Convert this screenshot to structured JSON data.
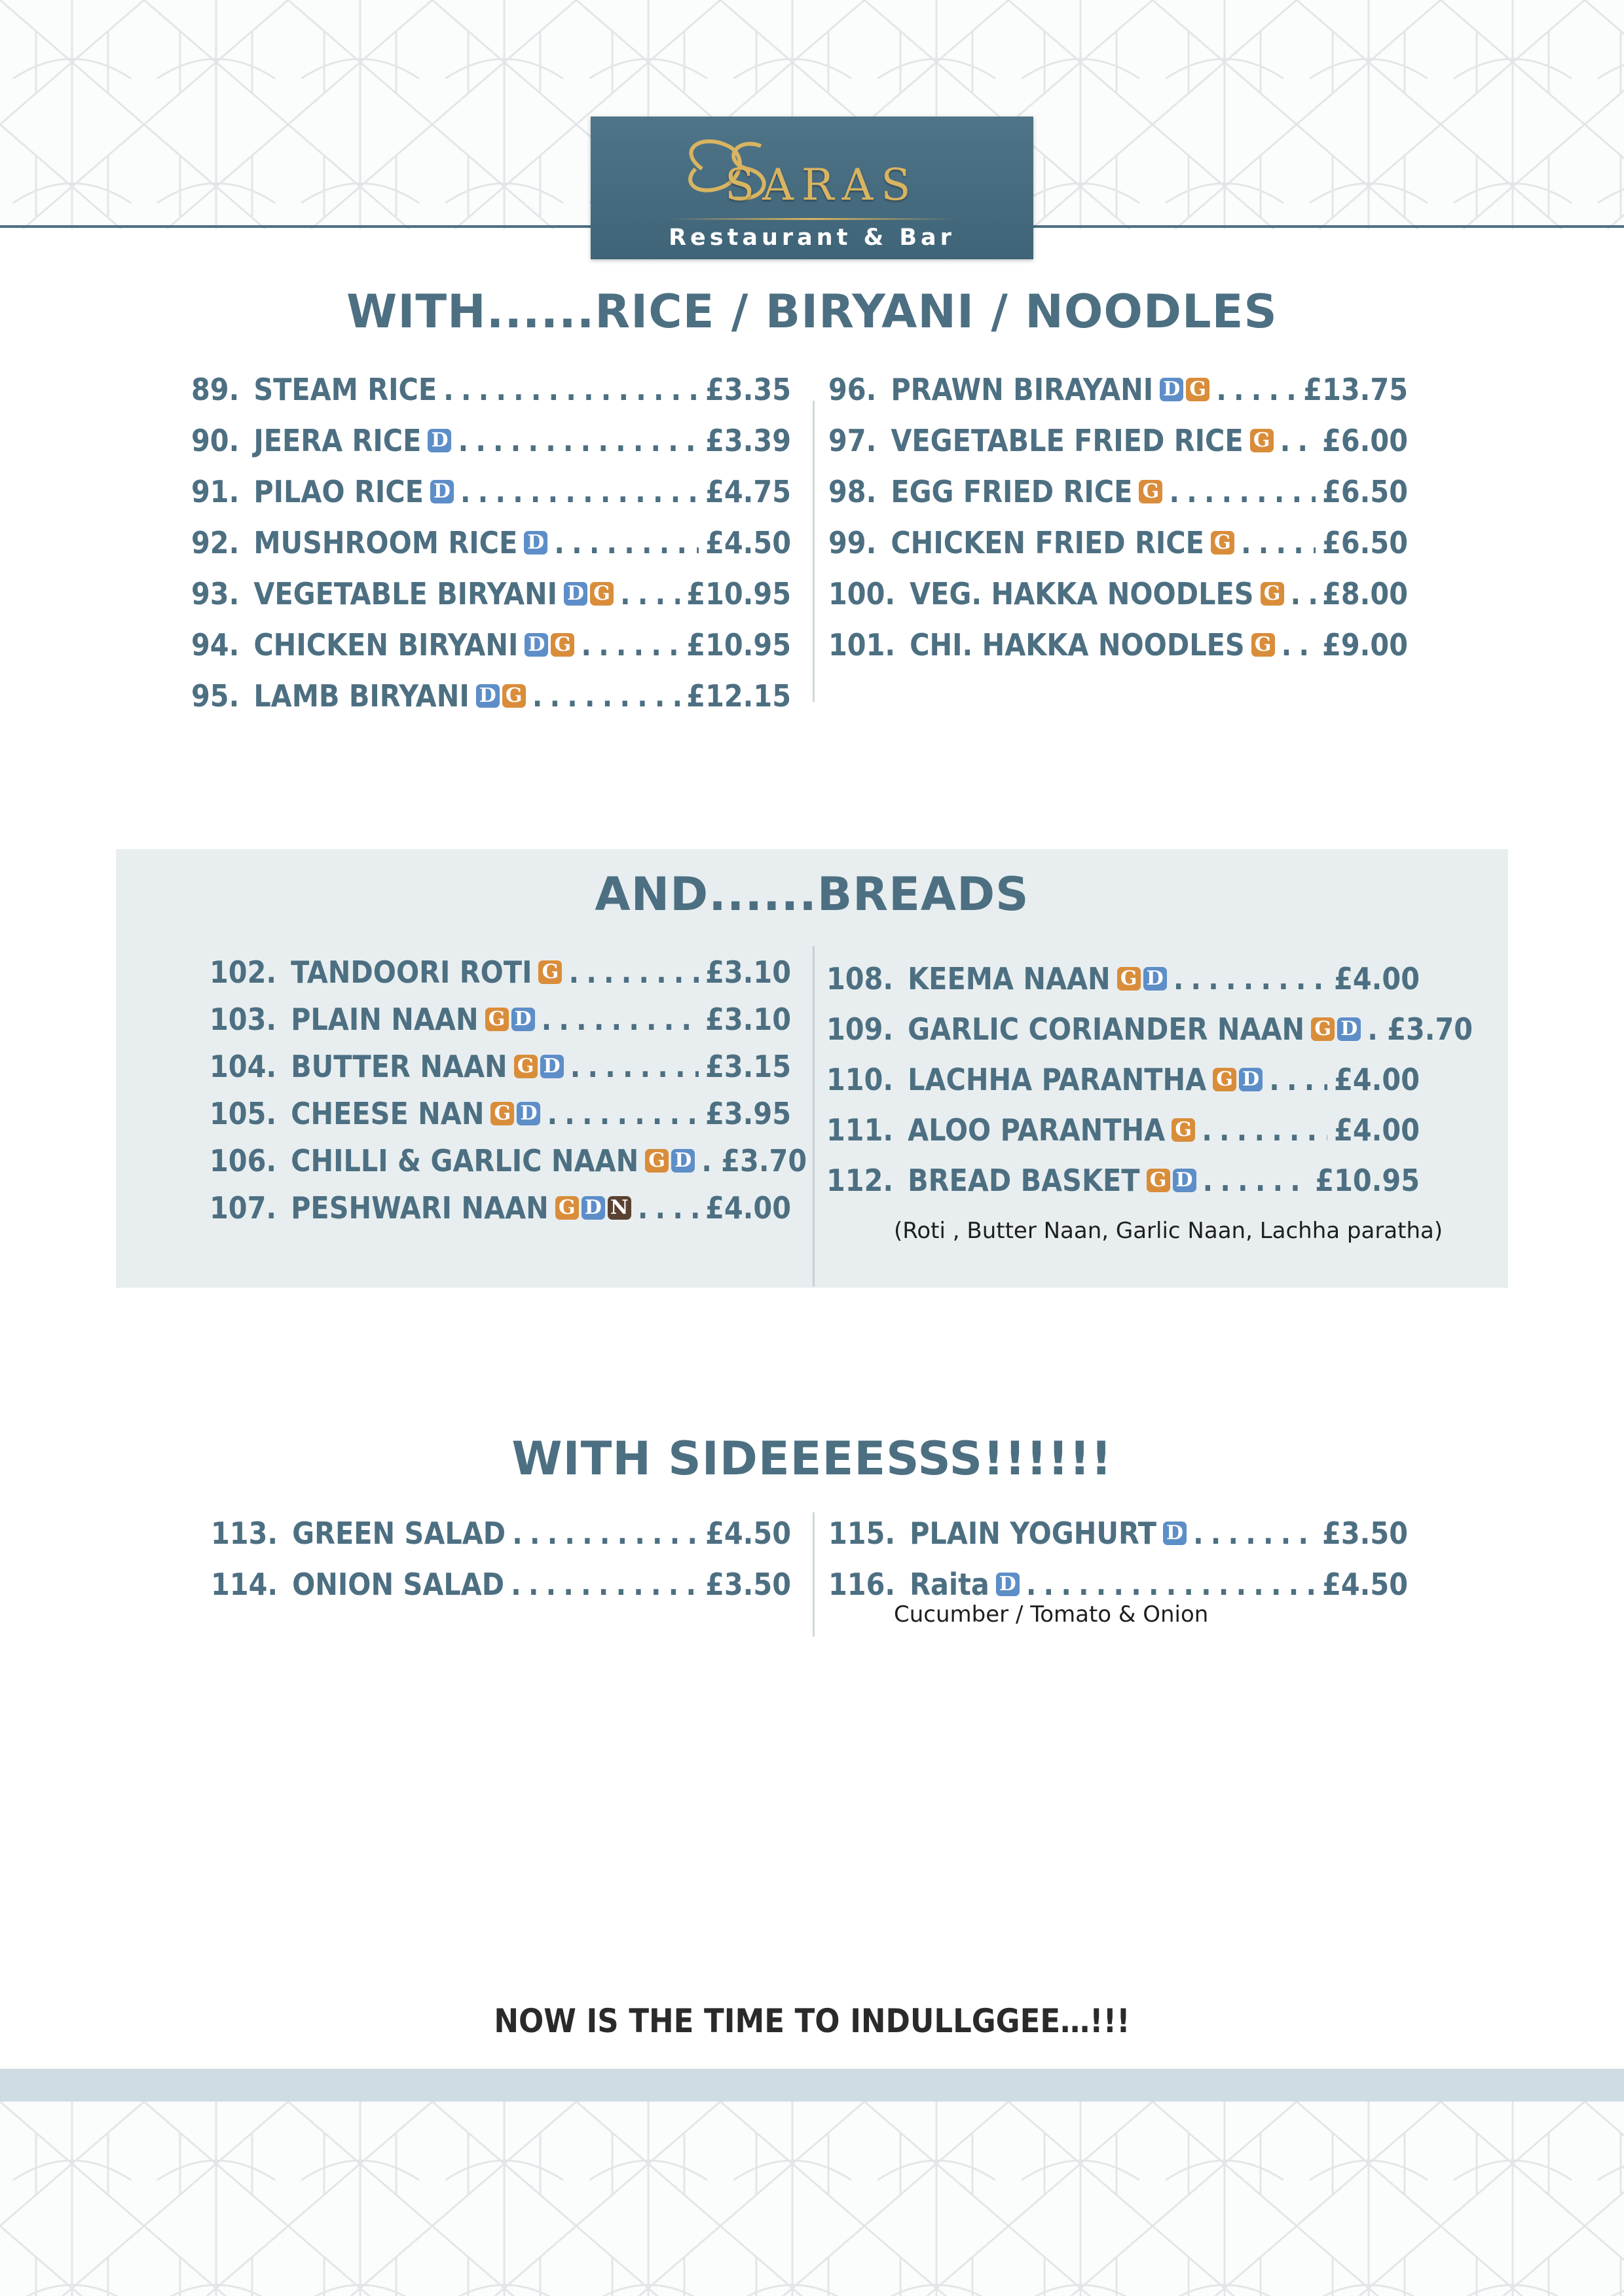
{
  "brand": {
    "name": "SARAS",
    "subtitle": "Restaurant & Bar",
    "gold": "#d9b461",
    "panel": "#4a6f82"
  },
  "colors": {
    "primary": "#4d6f82",
    "tag_d": "#5d8ec8",
    "tag_g": "#d98d3a",
    "tag_n": "#5a4232",
    "breads_panel": "#e8eeef"
  },
  "sections": {
    "rice": {
      "heading": "WITH......RICE / BIRYANI / NOODLES",
      "left": [
        {
          "num": "89.",
          "name": "STEAM RICE",
          "tags": [],
          "price": "£3.35"
        },
        {
          "num": "90.",
          "name": "JEERA RICE",
          "tags": [
            "D"
          ],
          "price": "£3.39"
        },
        {
          "num": "91.",
          "name": "PILAO RICE",
          "tags": [
            "D"
          ],
          "price": "£4.75"
        },
        {
          "num": "92.",
          "name": "MUSHROOM RICE",
          "tags": [
            "D"
          ],
          "price": "£4.50"
        },
        {
          "num": "93.",
          "name": "VEGETABLE BIRYANI",
          "tags": [
            "D",
            "G"
          ],
          "price": "£10.95"
        },
        {
          "num": "94.",
          "name": "CHICKEN BIRYANI",
          "tags": [
            "D",
            "G"
          ],
          "price": "£10.95"
        },
        {
          "num": "95.",
          "name": "LAMB BIRYANI",
          "tags": [
            "D",
            "G"
          ],
          "price": "£12.15"
        }
      ],
      "right": [
        {
          "num": "96.",
          "name": "PRAWN BIRAYANI",
          "tags": [
            "D",
            "G"
          ],
          "price": "£13.75"
        },
        {
          "num": "97.",
          "name": "VEGETABLE FRIED RICE",
          "tags": [
            "G"
          ],
          "price": "£6.00"
        },
        {
          "num": "98.",
          "name": "EGG FRIED RICE",
          "tags": [
            "G"
          ],
          "price": "£6.50"
        },
        {
          "num": "99.",
          "name": "CHICKEN FRIED RICE",
          "tags": [
            "G"
          ],
          "price": "£6.50"
        },
        {
          "num": "100.",
          "name": "VEG. HAKKA NOODLES",
          "tags": [
            "G"
          ],
          "price": "£8.00"
        },
        {
          "num": "101.",
          "name": "CHI. HAKKA NOODLES",
          "tags": [
            "G"
          ],
          "price": "£9.00"
        }
      ]
    },
    "breads": {
      "heading": "AND......BREADS",
      "left": [
        {
          "num": "102.",
          "name": "TANDOORI ROTI",
          "tags": [
            "G"
          ],
          "price": "£3.10"
        },
        {
          "num": "103.",
          "name": "PLAIN NAAN",
          "tags": [
            "G",
            "D"
          ],
          "price": "£3.10"
        },
        {
          "num": "104.",
          "name": "BUTTER NAAN",
          "tags": [
            "G",
            "D"
          ],
          "price": "£3.15"
        },
        {
          "num": "105.",
          "name": "CHEESE NAN",
          "tags": [
            "G",
            "D"
          ],
          "price": "£3.95"
        },
        {
          "num": "106.",
          "name": "CHILLI & GARLIC NAAN",
          "tags": [
            "G",
            "D"
          ],
          "price": "£3.70"
        },
        {
          "num": "107.",
          "name": "PESHWARI NAAN",
          "tags": [
            "G",
            "D",
            "N"
          ],
          "price": "£4.00"
        }
      ],
      "right": [
        {
          "num": "108.",
          "name": "KEEMA NAAN",
          "tags": [
            "G",
            "D"
          ],
          "price": "£4.00"
        },
        {
          "num": "109.",
          "name": "GARLIC CORIANDER NAAN",
          "tags": [
            "G",
            "D"
          ],
          "price": "£3.70"
        },
        {
          "num": "110.",
          "name": "LACHHA PARANTHA",
          "tags": [
            "G",
            "D"
          ],
          "price": "£4.00"
        },
        {
          "num": "111.",
          "name": "ALOO PARANTHA",
          "tags": [
            "G"
          ],
          "price": "£4.00"
        },
        {
          "num": "112.",
          "name": "BREAD BASKET",
          "tags": [
            "G",
            "D"
          ],
          "price": "£10.95"
        }
      ],
      "note": "(Roti , Butter Naan, Garlic Naan, Lachha paratha)"
    },
    "sides": {
      "heading": "WITH SIDEEEESSS!!!!!!",
      "left": [
        {
          "num": "113.",
          "name": "GREEN SALAD",
          "tags": [],
          "price": "£4.50"
        },
        {
          "num": "114.",
          "name": "ONION SALAD",
          "tags": [],
          "price": "£3.50"
        }
      ],
      "right": [
        {
          "num": "115.",
          "name": "PLAIN YOGHURT",
          "tags": [
            "D"
          ],
          "price": "£3.50"
        },
        {
          "num": "116.",
          "name": "Raita",
          "tags": [
            "D"
          ],
          "price": "£4.50"
        }
      ],
      "note": "Cucumber / Tomato & Onion"
    }
  },
  "footer": {
    "tagline": "NOW IS THE TIME TO INDULLGGEE…!!!"
  }
}
